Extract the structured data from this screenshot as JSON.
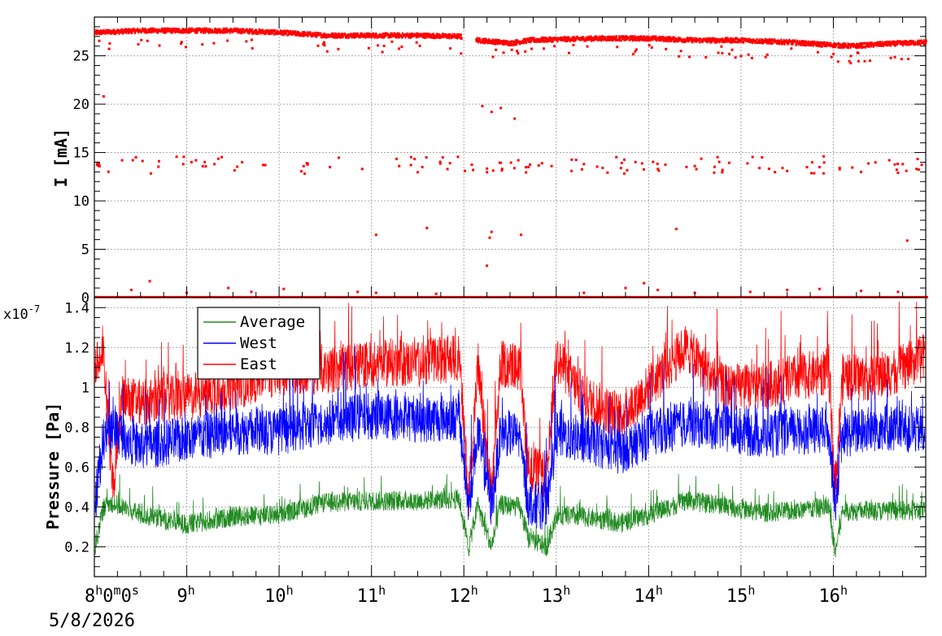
{
  "chart_data": [
    {
      "type": "scatter",
      "ylabel": "I [mA]",
      "xlim": [
        8,
        17
      ],
      "ylim": [
        0,
        29
      ],
      "yticks": [
        0,
        5,
        10,
        15,
        20,
        25
      ],
      "grid": true,
      "color": "#ff0000",
      "series": [
        {
          "main_band": [
            [
              8.0,
              27.4
            ],
            [
              8.5,
              27.6
            ],
            [
              9.0,
              27.6
            ],
            [
              9.5,
              27.6
            ],
            [
              10.0,
              27.4
            ],
            [
              10.5,
              27.1
            ],
            [
              11.0,
              27.1
            ],
            [
              11.5,
              27.1
            ],
            [
              11.95,
              27.0
            ],
            [
              12.15,
              26.6
            ],
            [
              12.5,
              26.3
            ],
            [
              12.7,
              26.6
            ],
            [
              13.0,
              26.7
            ],
            [
              13.5,
              26.8
            ],
            [
              14.0,
              26.8
            ],
            [
              14.5,
              26.6
            ],
            [
              15.0,
              26.6
            ],
            [
              15.5,
              26.4
            ],
            [
              16.0,
              26.1
            ],
            [
              16.2,
              26.0
            ],
            [
              16.5,
              26.2
            ],
            [
              17.0,
              26.4
            ]
          ],
          "mid_points": [
            [
              8.05,
              13.6
            ],
            [
              8.3,
              14.2
            ],
            [
              8.45,
              14.5
            ],
            [
              8.7,
              14.1
            ],
            [
              9.1,
              14.2
            ],
            [
              9.3,
              13.8
            ],
            [
              9.6,
              14.0
            ],
            [
              9.85,
              13.7
            ],
            [
              10.3,
              13.9
            ],
            [
              10.55,
              13.5
            ],
            [
              10.9,
              13.3
            ],
            [
              11.3,
              13.6
            ],
            [
              11.55,
              13.5
            ],
            [
              11.85,
              13.9
            ],
            [
              12.1,
              13.2
            ],
            [
              12.7,
              13.5
            ],
            [
              12.95,
              13.6
            ],
            [
              13.3,
              13.8
            ],
            [
              13.7,
              13.4
            ],
            [
              14.1,
              13.3
            ],
            [
              14.5,
              13.6
            ],
            [
              14.8,
              13.2
            ],
            [
              15.2,
              13.4
            ],
            [
              15.5,
              13.1
            ],
            [
              15.85,
              13.5
            ],
            [
              16.3,
              13.0
            ],
            [
              16.7,
              12.9
            ],
            [
              16.9,
              13.3
            ]
          ],
          "outliers": [
            [
              8.1,
              20.8
            ],
            [
              12.2,
              19.8
            ],
            [
              12.3,
              19.2
            ],
            [
              12.4,
              19.6
            ],
            [
              12.55,
              18.5
            ],
            [
              11.05,
              6.5
            ],
            [
              11.6,
              7.2
            ],
            [
              12.3,
              6.8
            ],
            [
              12.28,
              6.2
            ],
            [
              12.25,
              3.3
            ],
            [
              12.62,
              6.5
            ],
            [
              14.3,
              7.1
            ],
            [
              16.8,
              5.9
            ]
          ],
          "near_zero": [
            [
              8.4,
              0.8
            ],
            [
              8.6,
              1.7
            ],
            [
              9.0,
              0.5
            ],
            [
              9.45,
              1.0
            ],
            [
              9.7,
              0.6
            ],
            [
              10.05,
              0.9
            ],
            [
              10.85,
              0.6
            ],
            [
              11.05,
              0.5
            ],
            [
              11.7,
              0.4
            ],
            [
              13.3,
              0.5
            ],
            [
              13.75,
              1.0
            ],
            [
              13.95,
              1.5
            ],
            [
              14.1,
              0.8
            ],
            [
              14.5,
              0.5
            ],
            [
              15.1,
              0.6
            ],
            [
              15.5,
              0.8
            ],
            [
              15.85,
              0.9
            ],
            [
              16.3,
              0.7
            ],
            [
              16.7,
              0.6
            ]
          ]
        }
      ]
    },
    {
      "type": "line",
      "ylabel": "Pressure [Pa]",
      "exponent_label": "x10",
      "exponent_power": "-7",
      "xlim": [
        8,
        17
      ],
      "ylim": [
        0.05,
        1.45
      ],
      "yticks": [
        "0.2",
        "0.4",
        "0.6",
        "0.8",
        "1",
        "1.2",
        "1.4"
      ],
      "grid": true,
      "legend_position": "top-left",
      "series": [
        {
          "name": "Average",
          "color": "#228b22",
          "points": [
            [
              8.0,
              0.18
            ],
            [
              8.1,
              0.4
            ],
            [
              8.2,
              0.42
            ],
            [
              8.5,
              0.36
            ],
            [
              9.0,
              0.31
            ],
            [
              9.5,
              0.35
            ],
            [
              10.0,
              0.36
            ],
            [
              10.5,
              0.42
            ],
            [
              11.0,
              0.43
            ],
            [
              11.5,
              0.43
            ],
            [
              11.95,
              0.44
            ],
            [
              12.05,
              0.19
            ],
            [
              12.15,
              0.41
            ],
            [
              12.3,
              0.2
            ],
            [
              12.4,
              0.41
            ],
            [
              12.6,
              0.4
            ],
            [
              12.7,
              0.24
            ],
            [
              12.9,
              0.2
            ],
            [
              13.0,
              0.36
            ],
            [
              13.3,
              0.35
            ],
            [
              13.7,
              0.32
            ],
            [
              14.0,
              0.36
            ],
            [
              14.4,
              0.43
            ],
            [
              14.8,
              0.41
            ],
            [
              15.2,
              0.37
            ],
            [
              15.6,
              0.38
            ],
            [
              15.95,
              0.4
            ],
            [
              16.02,
              0.17
            ],
            [
              16.1,
              0.38
            ],
            [
              16.5,
              0.38
            ],
            [
              17.0,
              0.38
            ]
          ],
          "amp": 0.05
        },
        {
          "name": "West",
          "color": "#0000ff",
          "points": [
            [
              8.0,
              0.4
            ],
            [
              8.1,
              0.75
            ],
            [
              8.2,
              0.8
            ],
            [
              8.5,
              0.7
            ],
            [
              9.0,
              0.74
            ],
            [
              9.5,
              0.78
            ],
            [
              10.0,
              0.78
            ],
            [
              10.5,
              0.82
            ],
            [
              11.0,
              0.86
            ],
            [
              11.5,
              0.84
            ],
            [
              11.95,
              0.85
            ],
            [
              12.05,
              0.4
            ],
            [
              12.15,
              0.78
            ],
            [
              12.3,
              0.4
            ],
            [
              12.4,
              0.78
            ],
            [
              12.6,
              0.75
            ],
            [
              12.7,
              0.42
            ],
            [
              12.9,
              0.4
            ],
            [
              13.0,
              0.76
            ],
            [
              13.3,
              0.74
            ],
            [
              13.7,
              0.68
            ],
            [
              14.0,
              0.76
            ],
            [
              14.4,
              0.82
            ],
            [
              14.8,
              0.8
            ],
            [
              15.2,
              0.76
            ],
            [
              15.6,
              0.78
            ],
            [
              15.95,
              0.78
            ],
            [
              16.02,
              0.42
            ],
            [
              16.1,
              0.76
            ],
            [
              16.5,
              0.8
            ],
            [
              17.0,
              0.78
            ]
          ],
          "amp": 0.12
        },
        {
          "name": "East",
          "color": "#ff0000",
          "points": [
            [
              8.0,
              1.1
            ],
            [
              8.1,
              1.15
            ],
            [
              8.2,
              0.5
            ],
            [
              8.3,
              0.95
            ],
            [
              8.5,
              0.92
            ],
            [
              9.0,
              0.95
            ],
            [
              9.5,
              1.0
            ],
            [
              10.0,
              1.08
            ],
            [
              10.5,
              1.08
            ],
            [
              11.0,
              1.12
            ],
            [
              11.5,
              1.12
            ],
            [
              11.95,
              1.15
            ],
            [
              12.05,
              0.45
            ],
            [
              12.15,
              1.1
            ],
            [
              12.3,
              0.45
            ],
            [
              12.4,
              1.12
            ],
            [
              12.6,
              1.1
            ],
            [
              12.7,
              0.6
            ],
            [
              12.9,
              0.55
            ],
            [
              13.0,
              1.15
            ],
            [
              13.3,
              0.95
            ],
            [
              13.7,
              0.85
            ],
            [
              14.0,
              1.0
            ],
            [
              14.4,
              1.2
            ],
            [
              14.8,
              1.0
            ],
            [
              15.2,
              1.0
            ],
            [
              15.6,
              1.05
            ],
            [
              15.95,
              1.08
            ],
            [
              16.02,
              0.5
            ],
            [
              16.1,
              1.05
            ],
            [
              16.5,
              1.05
            ],
            [
              17.0,
              1.15
            ]
          ],
          "amp": 0.12
        }
      ]
    }
  ],
  "time_axis": {
    "first_label_main": "8",
    "first_label_suffix": [
      "h",
      "0",
      "m",
      "0",
      "s"
    ],
    "date": "5/8/2026",
    "hour_labels": [
      {
        "t": 9,
        "num": "9",
        "unit": "h"
      },
      {
        "t": 10,
        "num": "10",
        "unit": "h"
      },
      {
        "t": 11,
        "num": "11",
        "unit": "h"
      },
      {
        "t": 12,
        "num": "12",
        "unit": "h"
      },
      {
        "t": 13,
        "num": "13",
        "unit": "h"
      },
      {
        "t": 14,
        "num": "14",
        "unit": "h"
      },
      {
        "t": 15,
        "num": "15",
        "unit": "h"
      },
      {
        "t": 16,
        "num": "16",
        "unit": "h"
      }
    ]
  }
}
